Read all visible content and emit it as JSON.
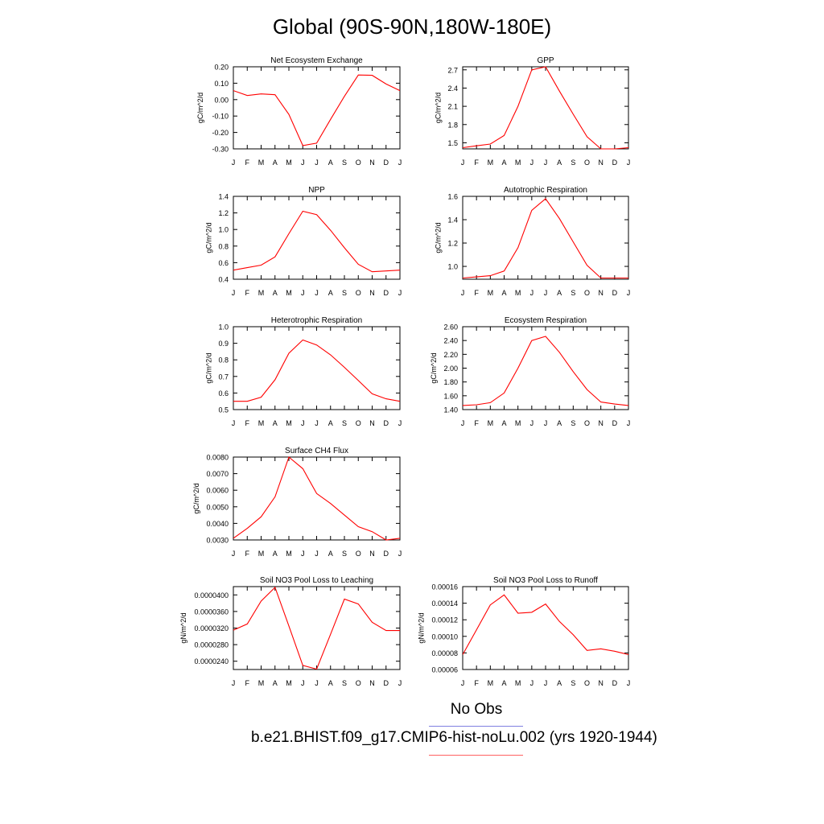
{
  "title": "Global (90S-90N,180W-180E)",
  "months": [
    "J",
    "F",
    "M",
    "A",
    "M",
    "J",
    "J",
    "A",
    "S",
    "O",
    "N",
    "D",
    "J"
  ],
  "legend": {
    "obs_label": "No Obs",
    "model_label": "b.e21.BHIST.f09_g17.CMIP6-hist-noLu.002 (yrs 1920-1944)",
    "obs_color": "#8080e0",
    "model_color": "#ff0000"
  },
  "chart_data": [
    {
      "type": "line",
      "title": "Net Ecosystem Exchange",
      "ylabel": "gC/m^2/d",
      "ylim": [
        -0.3,
        0.2
      ],
      "yticks": [
        "-0.30",
        "-0.20",
        "-0.10",
        "0.00",
        "0.10",
        "0.20"
      ],
      "x": [
        "J",
        "F",
        "M",
        "A",
        "M",
        "J",
        "J",
        "A",
        "S",
        "O",
        "N",
        "D",
        "J"
      ],
      "series": [
        {
          "values": [
            0.055,
            0.025,
            0.035,
            0.03,
            -0.09,
            -0.28,
            -0.265,
            -0.12,
            0.02,
            0.15,
            0.148,
            0.095,
            0.055
          ]
        }
      ]
    },
    {
      "type": "line",
      "title": "GPP",
      "ylabel": "gC/m^2/d",
      "ylim": [
        1.4,
        2.75
      ],
      "yticks": [
        "1.5",
        "1.8",
        "2.1",
        "2.4",
        "2.7"
      ],
      "x": [
        "J",
        "F",
        "M",
        "A",
        "M",
        "J",
        "J",
        "A",
        "S",
        "O",
        "N",
        "D",
        "J"
      ],
      "series": [
        {
          "values": [
            1.42,
            1.45,
            1.48,
            1.62,
            2.1,
            2.7,
            2.75,
            2.35,
            1.97,
            1.6,
            1.4,
            1.4,
            1.42
          ]
        }
      ]
    },
    {
      "type": "line",
      "title": "NPP",
      "ylabel": "gC/m^2/d",
      "ylim": [
        0.4,
        1.4
      ],
      "yticks": [
        "0.4",
        "0.6",
        "0.8",
        "1.0",
        "1.2",
        "1.4"
      ],
      "x": [
        "J",
        "F",
        "M",
        "A",
        "M",
        "J",
        "J",
        "A",
        "S",
        "O",
        "N",
        "D",
        "J"
      ],
      "series": [
        {
          "values": [
            0.51,
            0.54,
            0.57,
            0.67,
            0.95,
            1.22,
            1.18,
            0.99,
            0.78,
            0.58,
            0.49,
            0.5,
            0.51
          ]
        }
      ]
    },
    {
      "type": "line",
      "title": "Autotrophic Respiration",
      "ylabel": "gC/m^2/d",
      "ylim": [
        0.89,
        1.6
      ],
      "yticks": [
        "1.0",
        "1.2",
        "1.4",
        "1.6"
      ],
      "x": [
        "J",
        "F",
        "M",
        "A",
        "M",
        "J",
        "J",
        "A",
        "S",
        "O",
        "N",
        "D",
        "J"
      ],
      "series": [
        {
          "values": [
            0.9,
            0.91,
            0.92,
            0.96,
            1.16,
            1.48,
            1.58,
            1.41,
            1.21,
            1.01,
            0.9,
            0.9,
            0.9
          ]
        }
      ]
    },
    {
      "type": "line",
      "title": "Heterotrophic Respiration",
      "ylabel": "gC/m^2/d",
      "ylim": [
        0.5,
        1.0
      ],
      "yticks": [
        "0.5",
        "0.6",
        "0.7",
        "0.8",
        "0.9",
        "1.0"
      ],
      "x": [
        "J",
        "F",
        "M",
        "A",
        "M",
        "J",
        "J",
        "A",
        "S",
        "O",
        "N",
        "D",
        "J"
      ],
      "series": [
        {
          "values": [
            0.55,
            0.55,
            0.575,
            0.68,
            0.84,
            0.92,
            0.89,
            0.83,
            0.755,
            0.675,
            0.595,
            0.565,
            0.55
          ]
        }
      ]
    },
    {
      "type": "line",
      "title": "Ecosystem Respiration",
      "ylabel": "gC/m^2/d",
      "ylim": [
        1.4,
        2.6
      ],
      "yticks": [
        "1.40",
        "1.60",
        "1.80",
        "2.00",
        "2.20",
        "2.40",
        "2.60"
      ],
      "x": [
        "J",
        "F",
        "M",
        "A",
        "M",
        "J",
        "J",
        "A",
        "S",
        "O",
        "N",
        "D",
        "J"
      ],
      "series": [
        {
          "values": [
            1.46,
            1.47,
            1.5,
            1.64,
            2.0,
            2.4,
            2.46,
            2.23,
            1.95,
            1.69,
            1.51,
            1.48,
            1.46
          ]
        }
      ]
    },
    {
      "type": "line",
      "title": "Surface CH4 Flux",
      "ylabel": "gC/m^2/d",
      "ylim": [
        0.003,
        0.008
      ],
      "yticks": [
        "0.0030",
        "0.0040",
        "0.0050",
        "0.0060",
        "0.0070",
        "0.0080"
      ],
      "x": [
        "J",
        "F",
        "M",
        "A",
        "M",
        "J",
        "J",
        "A",
        "S",
        "O",
        "N",
        "D",
        "J"
      ],
      "series": [
        {
          "values": [
            0.0031,
            0.0037,
            0.0044,
            0.0056,
            0.008,
            0.0073,
            0.0058,
            0.0052,
            0.0045,
            0.0038,
            0.0035,
            0.003,
            0.0031
          ]
        }
      ]
    },
    {
      "type": "line",
      "title": "Soil NO3 Pool Loss to Leaching",
      "ylabel": "gN/m^2/d",
      "ylim": [
        2.2e-05,
        4.2e-05
      ],
      "yticks": [
        "0.0000240",
        "0.0000280",
        "0.0000320",
        "0.0000360",
        "0.0000400"
      ],
      "x": [
        "J",
        "F",
        "M",
        "A",
        "M",
        "J",
        "J",
        "A",
        "S",
        "O",
        "N",
        "D",
        "J"
      ],
      "series": [
        {
          "values": [
            3.15e-05,
            3.3e-05,
            3.85e-05,
            4.18e-05,
            3.25e-05,
            2.3e-05,
            2.21e-05,
            3.05e-05,
            3.9e-05,
            3.78e-05,
            3.34e-05,
            3.14e-05,
            3.14e-05
          ]
        }
      ]
    },
    {
      "type": "line",
      "title": "Soil NO3 Pool Loss to Runoff",
      "ylabel": "gN/m^2/d",
      "ylim": [
        6e-05,
        0.00016
      ],
      "yticks": [
        "0.00006",
        "0.00008",
        "0.00010",
        "0.00012",
        "0.00014",
        "0.00016"
      ],
      "x": [
        "J",
        "F",
        "M",
        "A",
        "M",
        "J",
        "J",
        "A",
        "S",
        "O",
        "N",
        "D",
        "J"
      ],
      "series": [
        {
          "values": [
            7.8e-05,
            0.000108,
            0.000138,
            0.00015,
            0.000128,
            0.000129,
            0.000139,
            0.000118,
            0.000102,
            8.3e-05,
            8.5e-05,
            8.2e-05,
            7.8e-05
          ]
        }
      ]
    }
  ]
}
